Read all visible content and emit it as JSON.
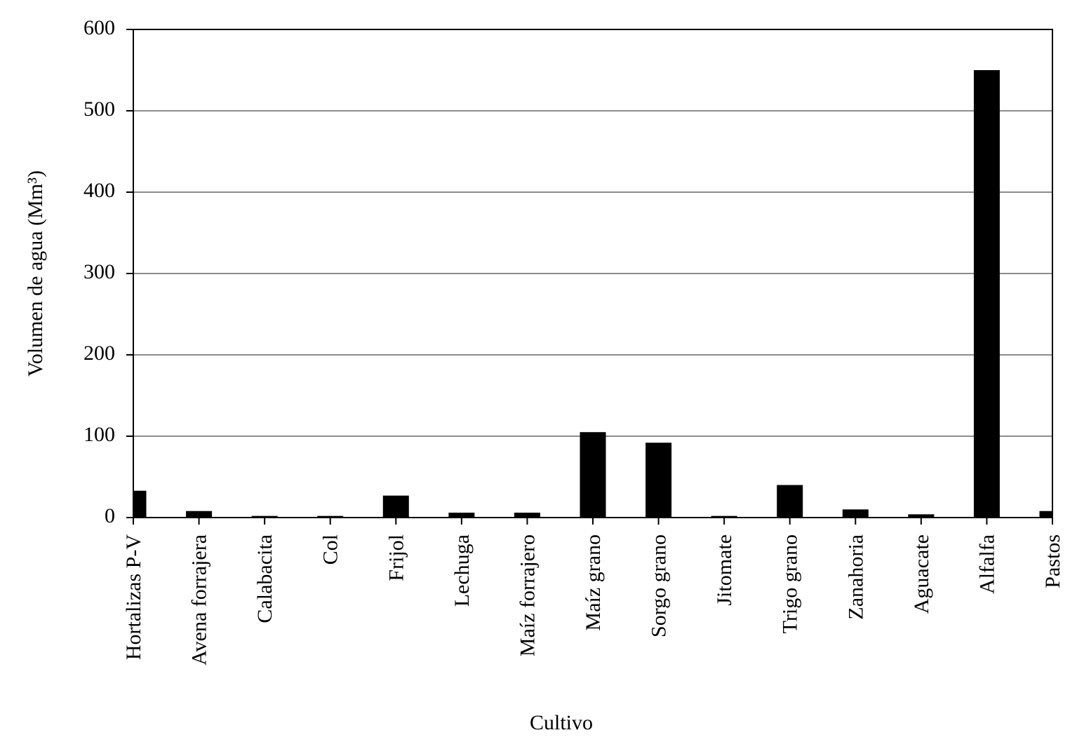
{
  "chart_data": {
    "type": "bar",
    "x_label": "Cultivo",
    "y_label": "Volumen de agua (Mm³)",
    "categories": [
      "Hortalizas P-V",
      "Avena forrajera",
      "Calabacita",
      "Col",
      "Frijol",
      "Lechuga",
      "Maíz forrajero",
      "Maíz grano",
      "Sorgo grano",
      "Jitomate",
      "Trigo grano",
      "Zanahoria",
      "Aguacate",
      "Alfalfa",
      "Pastos"
    ],
    "values": [
      33,
      8,
      2,
      2,
      27,
      6,
      6,
      105,
      92,
      2,
      40,
      10,
      4,
      550,
      8
    ],
    "color": "#000000",
    "ylim": [
      0,
      600
    ],
    "yticks": [
      0,
      100,
      200,
      300,
      400,
      500,
      600
    ],
    "grid": true
  }
}
